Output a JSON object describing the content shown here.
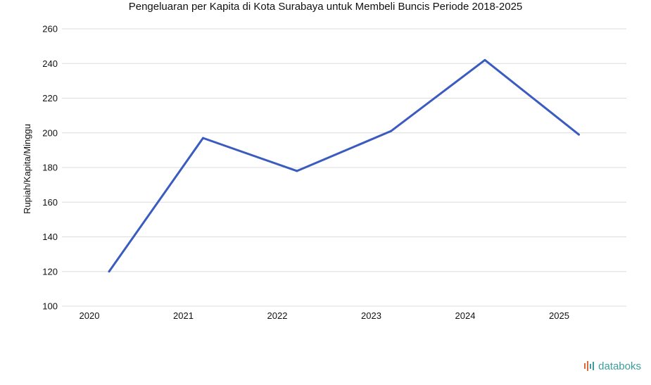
{
  "chart_data": {
    "type": "line",
    "title": "Pengeluaran per Kapita di Kota Surabaya untuk Membeli Buncis Periode 2018-2025",
    "xlabel": "",
    "ylabel": "Rupiah/Kapita/Minggu",
    "categories": [
      "2020",
      "2021",
      "2022",
      "2023",
      "2024",
      "2025"
    ],
    "series": [
      {
        "values": [
          120,
          197,
          178,
          201,
          242,
          199
        ],
        "color": "#3a5bbf"
      }
    ],
    "ylim": [
      100,
      260
    ],
    "yticks": [
      100,
      120,
      140,
      160,
      180,
      200,
      220,
      240,
      260
    ],
    "grid": true,
    "legend": "none"
  },
  "brand": {
    "name": "databoks",
    "color": "#3a9e9a",
    "icon": "databoks-logo-icon"
  }
}
